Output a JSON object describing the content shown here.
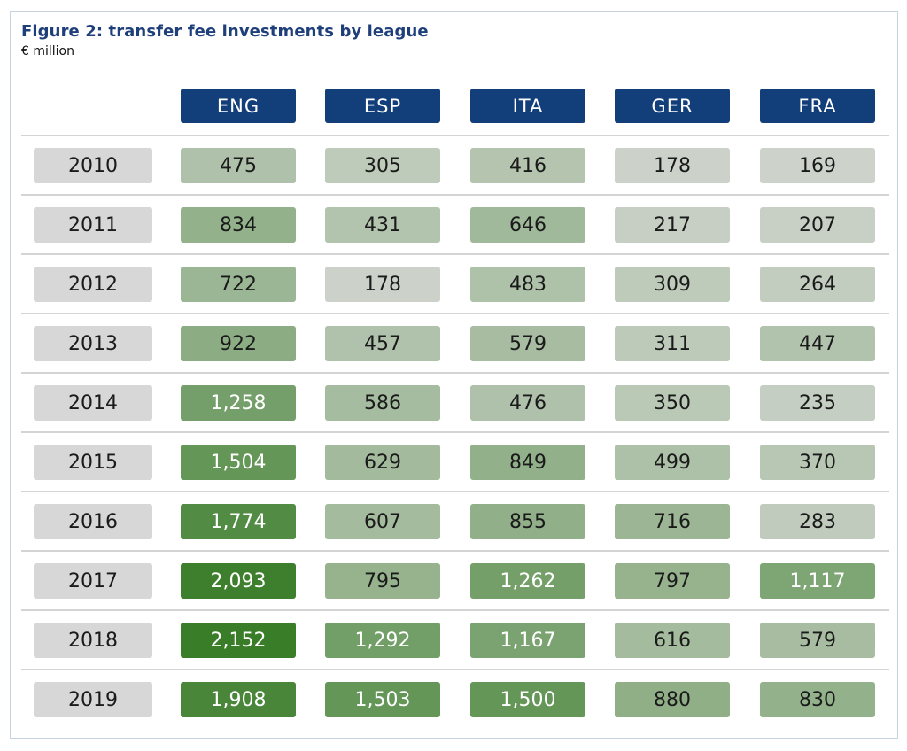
{
  "chart_data": {
    "type": "table",
    "title": "Figure 2: transfer fee investments by league",
    "subtitle": "€ million",
    "columns": [
      "ENG",
      "ESP",
      "ITA",
      "GER",
      "FRA"
    ],
    "rows": [
      {
        "year": "2010",
        "values": [
          "475",
          "305",
          "416",
          "178",
          "169"
        ]
      },
      {
        "year": "2011",
        "values": [
          "834",
          "431",
          "646",
          "217",
          "207"
        ]
      },
      {
        "year": "2012",
        "values": [
          "722",
          "178",
          "483",
          "309",
          "264"
        ]
      },
      {
        "year": "2013",
        "values": [
          "922",
          "457",
          "579",
          "311",
          "447"
        ]
      },
      {
        "year": "2014",
        "values": [
          "1,258",
          "586",
          "476",
          "350",
          "235"
        ]
      },
      {
        "year": "2015",
        "values": [
          "1,504",
          "629",
          "849",
          "499",
          "370"
        ]
      },
      {
        "year": "2016",
        "values": [
          "1,774",
          "607",
          "855",
          "716",
          "283"
        ]
      },
      {
        "year": "2017",
        "values": [
          "2,093",
          "795",
          "1,262",
          "797",
          "1,117"
        ]
      },
      {
        "year": "2018",
        "values": [
          "2,152",
          "1,292",
          "1,167",
          "616",
          "579"
        ]
      },
      {
        "year": "2019",
        "values": [
          "1,908",
          "1,503",
          "1,500",
          "880",
          "830"
        ]
      }
    ],
    "colors": {
      "header": "#123e79",
      "year_cell": "#d7d7d7",
      "scale_low": "#cdd3cb",
      "scale_high": "#3a7d29",
      "title": "#1f3f7a"
    }
  }
}
